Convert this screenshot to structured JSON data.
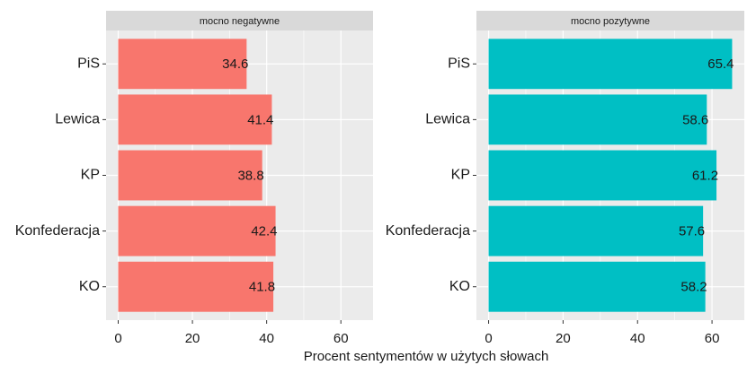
{
  "chart_data": [
    {
      "type": "bar",
      "orientation": "horizontal",
      "title": "mocno negatywne",
      "categories": [
        "PiS",
        "Lewica",
        "KP",
        "Konfederacja",
        "KO"
      ],
      "values": [
        34.6,
        41.4,
        38.8,
        42.4,
        41.8
      ],
      "color": "#F8766D",
      "xlim": [
        -3.27,
        68.67
      ],
      "xticks": [
        0,
        20,
        40,
        60
      ],
      "xticks_minor": [
        10,
        30,
        50
      ],
      "grid": true
    },
    {
      "type": "bar",
      "orientation": "horizontal",
      "title": "mocno pozytywne",
      "categories": [
        "PiS",
        "Lewica",
        "KP",
        "Konfederacja",
        "KO"
      ],
      "values": [
        65.4,
        58.6,
        61.2,
        57.6,
        58.2
      ],
      "color": "#00BFC4",
      "xlim": [
        -3.27,
        68.67
      ],
      "xticks": [
        0,
        20,
        40,
        60
      ],
      "xticks_minor": [
        10,
        30,
        50
      ],
      "grid": true
    }
  ],
  "xlabel": "Procent sentymentów w użytych słowach"
}
